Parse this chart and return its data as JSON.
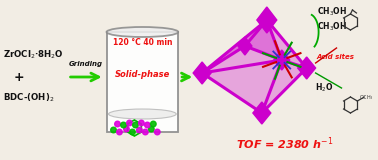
{
  "bg_color": "#f2ede4",
  "reactants_line1": "ZrOCl$_2$·8H$_2$O",
  "reactants_plus": "+",
  "reactants_line2": "BDC-(OH)$_2$",
  "arrow1_label": "Grinding",
  "beaker_top_label": "120 °C 40 min",
  "beaker_center_label": "Solid-phase",
  "tof_label": "TOF = 2380 h",
  "acid_sites_label": "Acid sites",
  "ch3oh_label1": "CH$_3$OH",
  "ch3oh_label2": "CH$_3$OH",
  "h2o_label": "H$_2$O",
  "magenta": "#cc00cc",
  "magenta_light": "#dd44dd",
  "green_arrow": "#22cc00",
  "red_text": "#ee1111",
  "text_color": "#111111",
  "beaker_edge": "#888888",
  "beaker_fill": "#ffffff",
  "dot_magenta": "#dd00dd",
  "dot_green": "#00bb00"
}
